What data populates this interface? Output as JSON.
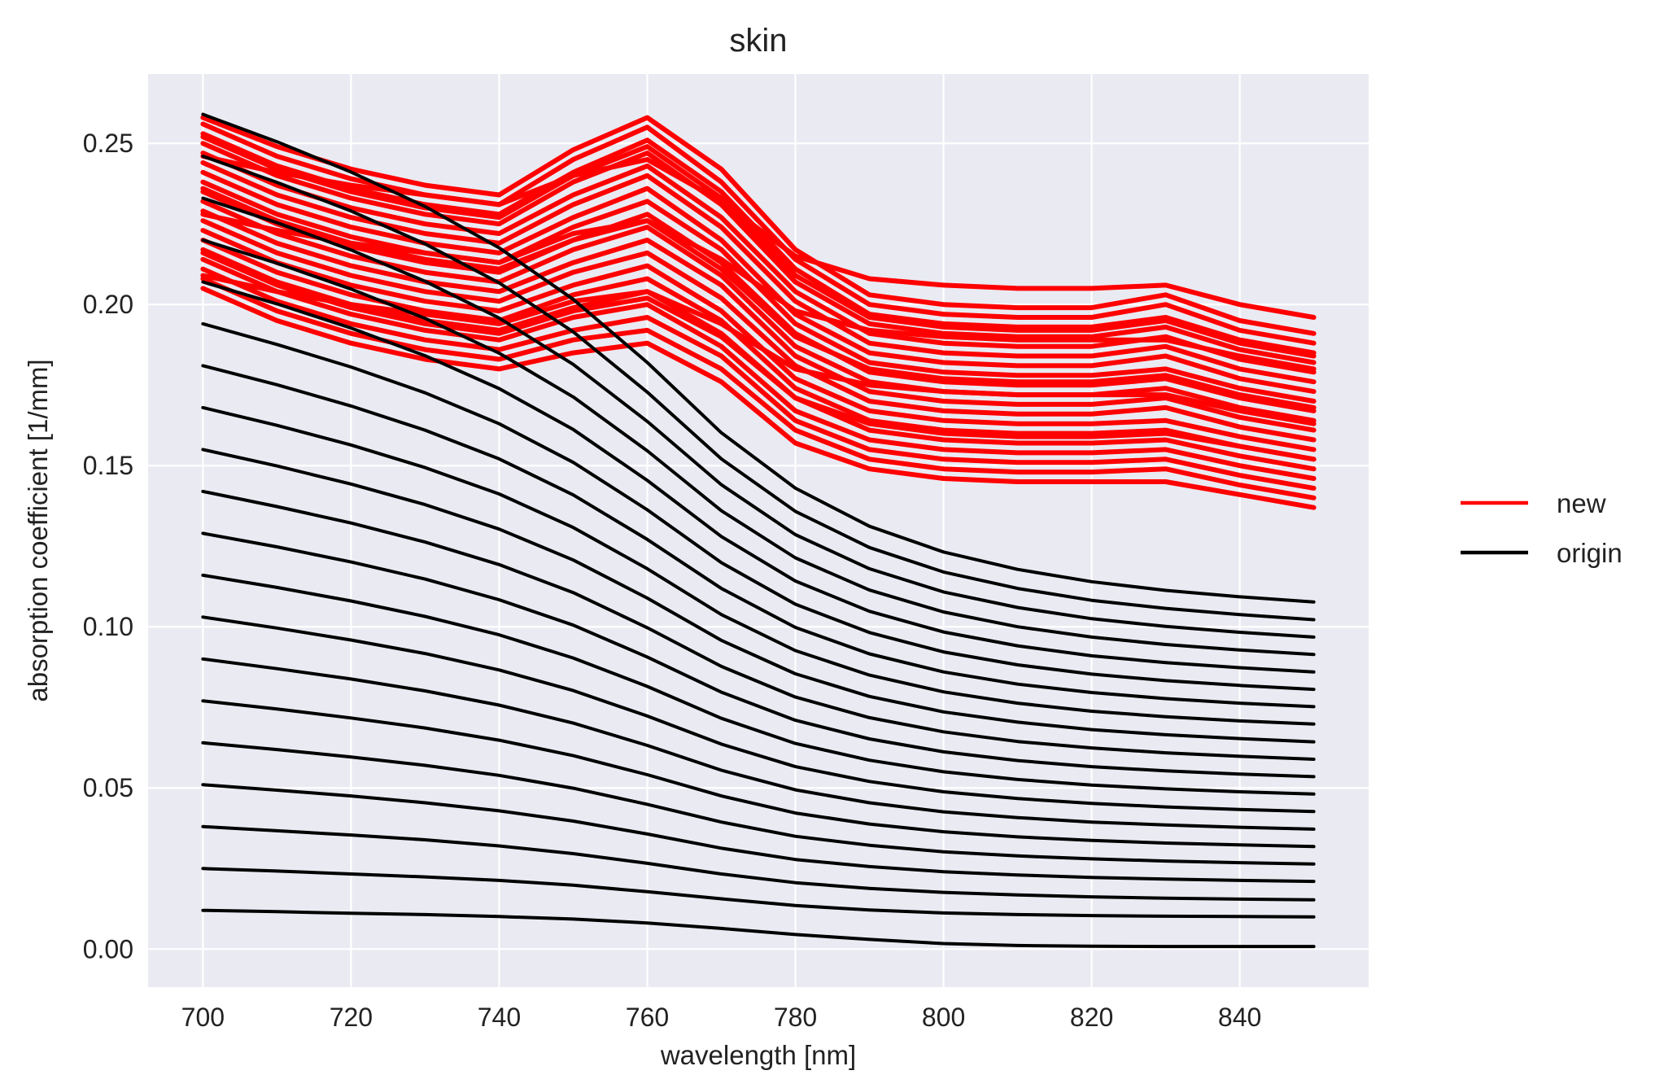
{
  "chart_data": {
    "type": "line",
    "title": "skin",
    "xlabel": "wavelength [nm]",
    "ylabel": "absorption coefficient [1/mm]",
    "xlim": [
      692.6,
      857.4
    ],
    "ylim": [
      -0.0118,
      0.2715
    ],
    "xticks": [
      700,
      720,
      740,
      760,
      780,
      800,
      820,
      840
    ],
    "yticks": [
      0.0,
      0.05,
      0.1,
      0.15,
      0.2,
      0.25
    ],
    "ytick_labels": [
      "0.00",
      "0.05",
      "0.10",
      "0.15",
      "0.20",
      "0.25"
    ],
    "grid": true,
    "legend": {
      "position": "outside-right",
      "entries": [
        {
          "label": "new",
          "color": "#ff0000"
        },
        {
          "label": "origin",
          "color": "#000000"
        }
      ]
    },
    "x": [
      700,
      710,
      720,
      730,
      740,
      750,
      760,
      770,
      780,
      790,
      800,
      810,
      820,
      830,
      840,
      850
    ],
    "origin_series": [
      [
        0.012,
        0.0116,
        0.0111,
        0.0107,
        0.0101,
        0.0093,
        0.0081,
        0.0064,
        0.0045,
        0.003,
        0.0017,
        0.0011,
        0.0009,
        0.0008,
        0.0008,
        0.0008
      ],
      [
        0.025,
        0.0242,
        0.0233,
        0.0224,
        0.0213,
        0.0198,
        0.0178,
        0.0156,
        0.0135,
        0.0121,
        0.0112,
        0.0107,
        0.0104,
        0.0102,
        0.0101,
        0.01
      ],
      [
        0.038,
        0.0367,
        0.0354,
        0.0339,
        0.032,
        0.0296,
        0.0266,
        0.0233,
        0.0206,
        0.0188,
        0.0176,
        0.0168,
        0.0162,
        0.0158,
        0.0155,
        0.0153
      ],
      [
        0.051,
        0.0493,
        0.0475,
        0.0454,
        0.0429,
        0.0397,
        0.0357,
        0.0313,
        0.0278,
        0.0256,
        0.024,
        0.023,
        0.0222,
        0.0217,
        0.0213,
        0.021
      ],
      [
        0.064,
        0.0619,
        0.0596,
        0.057,
        0.0539,
        0.0499,
        0.0449,
        0.0394,
        0.035,
        0.0322,
        0.0302,
        0.0289,
        0.028,
        0.0273,
        0.0268,
        0.0264
      ],
      [
        0.077,
        0.0745,
        0.0717,
        0.0686,
        0.0648,
        0.06,
        0.0541,
        0.0475,
        0.0422,
        0.0388,
        0.0364,
        0.0348,
        0.0337,
        0.0329,
        0.0323,
        0.0318
      ],
      [
        0.09,
        0.087,
        0.0838,
        0.0801,
        0.0757,
        0.0701,
        0.0632,
        0.0555,
        0.0494,
        0.0454,
        0.0426,
        0.0408,
        0.0394,
        0.0385,
        0.0378,
        0.0372
      ],
      [
        0.103,
        0.0996,
        0.0959,
        0.0917,
        0.0866,
        0.0802,
        0.0723,
        0.0636,
        0.0566,
        0.052,
        0.0488,
        0.0467,
        0.0452,
        0.0441,
        0.0433,
        0.0427
      ],
      [
        0.116,
        0.1122,
        0.108,
        0.1032,
        0.0975,
        0.0903,
        0.0815,
        0.0716,
        0.0638,
        0.0586,
        0.055,
        0.0526,
        0.0509,
        0.0497,
        0.0488,
        0.0481
      ],
      [
        0.129,
        0.1248,
        0.1201,
        0.1148,
        0.1084,
        0.1005,
        0.0906,
        0.0797,
        0.071,
        0.0652,
        0.0612,
        0.0585,
        0.0566,
        0.0553,
        0.0543,
        0.0535
      ],
      [
        0.142,
        0.1373,
        0.1322,
        0.1263,
        0.1193,
        0.1106,
        0.0997,
        0.0877,
        0.0782,
        0.0718,
        0.0674,
        0.0644,
        0.0624,
        0.0609,
        0.0598,
        0.0589
      ],
      [
        0.155,
        0.1499,
        0.1443,
        0.1379,
        0.1303,
        0.1207,
        0.1089,
        0.0958,
        0.0854,
        0.0784,
        0.0736,
        0.0704,
        0.0681,
        0.0665,
        0.0653,
        0.0643
      ],
      [
        0.168,
        0.1625,
        0.1564,
        0.1494,
        0.1412,
        0.1308,
        0.118,
        0.1038,
        0.0926,
        0.085,
        0.0798,
        0.0763,
        0.0738,
        0.0721,
        0.0708,
        0.0698
      ],
      [
        0.181,
        0.1751,
        0.1685,
        0.161,
        0.1521,
        0.1409,
        0.1271,
        0.1119,
        0.0998,
        0.0916,
        0.086,
        0.0822,
        0.0796,
        0.0777,
        0.0763,
        0.0752
      ],
      [
        0.194,
        0.1876,
        0.1806,
        0.1726,
        0.163,
        0.151,
        0.1363,
        0.1199,
        0.107,
        0.0982,
        0.0922,
        0.0882,
        0.0853,
        0.0833,
        0.0818,
        0.0806
      ],
      [
        0.207,
        0.2002,
        0.1927,
        0.1841,
        0.1739,
        0.1612,
        0.1454,
        0.128,
        0.1142,
        0.1048,
        0.0984,
        0.0941,
        0.091,
        0.0889,
        0.0873,
        0.086
      ],
      [
        0.22,
        0.2128,
        0.2048,
        0.1957,
        0.1849,
        0.1713,
        0.1546,
        0.136,
        0.1214,
        0.1114,
        0.1046,
        0.1,
        0.0968,
        0.0945,
        0.0928,
        0.0914
      ],
      [
        0.233,
        0.2254,
        0.2169,
        0.2072,
        0.1958,
        0.1814,
        0.1637,
        0.1441,
        0.1286,
        0.118,
        0.1108,
        0.106,
        0.1025,
        0.1001,
        0.0983,
        0.0968
      ],
      [
        0.246,
        0.2379,
        0.229,
        0.2188,
        0.2067,
        0.1915,
        0.1728,
        0.1521,
        0.1358,
        0.1246,
        0.117,
        0.1119,
        0.1082,
        0.1057,
        0.1038,
        0.1022
      ],
      [
        0.259,
        0.2505,
        0.2411,
        0.2304,
        0.2176,
        0.2016,
        0.182,
        0.1602,
        0.143,
        0.1312,
        0.1232,
        0.1178,
        0.114,
        0.1113,
        0.1093,
        0.1077
      ]
    ],
    "new_series": [
      [
        0.205,
        0.195,
        0.188,
        0.183,
        0.18,
        0.185,
        0.188,
        0.176,
        0.157,
        0.149,
        0.146,
        0.145,
        0.145,
        0.145,
        0.141,
        0.137
      ],
      [
        0.208,
        0.198,
        0.191,
        0.186,
        0.183,
        0.189,
        0.192,
        0.18,
        0.161,
        0.152,
        0.149,
        0.148,
        0.148,
        0.149,
        0.144,
        0.14
      ],
      [
        0.211,
        0.201,
        0.194,
        0.189,
        0.186,
        0.192,
        0.196,
        0.184,
        0.164,
        0.155,
        0.152,
        0.151,
        0.151,
        0.152,
        0.147,
        0.143
      ],
      [
        0.214,
        0.204,
        0.197,
        0.192,
        0.189,
        0.196,
        0.2,
        0.187,
        0.167,
        0.158,
        0.155,
        0.154,
        0.154,
        0.155,
        0.15,
        0.146
      ],
      [
        0.217,
        0.207,
        0.2,
        0.195,
        0.192,
        0.199,
        0.204,
        0.191,
        0.171,
        0.161,
        0.158,
        0.157,
        0.157,
        0.158,
        0.153,
        0.149
      ],
      [
        0.22,
        0.21,
        0.203,
        0.198,
        0.195,
        0.203,
        0.208,
        0.195,
        0.174,
        0.164,
        0.161,
        0.16,
        0.16,
        0.161,
        0.156,
        0.152
      ],
      [
        0.223,
        0.213,
        0.206,
        0.201,
        0.198,
        0.206,
        0.212,
        0.198,
        0.177,
        0.167,
        0.164,
        0.163,
        0.163,
        0.164,
        0.159,
        0.155
      ],
      [
        0.226,
        0.216,
        0.209,
        0.204,
        0.201,
        0.21,
        0.216,
        0.202,
        0.181,
        0.17,
        0.167,
        0.166,
        0.166,
        0.168,
        0.162,
        0.158
      ],
      [
        0.229,
        0.219,
        0.212,
        0.207,
        0.204,
        0.213,
        0.22,
        0.206,
        0.184,
        0.173,
        0.17,
        0.169,
        0.169,
        0.171,
        0.165,
        0.161
      ],
      [
        0.232,
        0.222,
        0.215,
        0.21,
        0.207,
        0.217,
        0.224,
        0.209,
        0.187,
        0.176,
        0.173,
        0.172,
        0.172,
        0.174,
        0.168,
        0.164
      ],
      [
        0.235,
        0.225,
        0.218,
        0.213,
        0.21,
        0.22,
        0.228,
        0.213,
        0.191,
        0.179,
        0.176,
        0.175,
        0.175,
        0.177,
        0.171,
        0.167
      ],
      [
        0.238,
        0.228,
        0.221,
        0.216,
        0.213,
        0.224,
        0.232,
        0.217,
        0.194,
        0.182,
        0.179,
        0.178,
        0.178,
        0.18,
        0.174,
        0.17
      ],
      [
        0.241,
        0.231,
        0.224,
        0.219,
        0.216,
        0.227,
        0.236,
        0.22,
        0.197,
        0.185,
        0.182,
        0.181,
        0.181,
        0.184,
        0.177,
        0.173
      ],
      [
        0.244,
        0.234,
        0.227,
        0.222,
        0.219,
        0.231,
        0.24,
        0.224,
        0.201,
        0.188,
        0.185,
        0.184,
        0.184,
        0.187,
        0.18,
        0.176
      ],
      [
        0.247,
        0.237,
        0.23,
        0.225,
        0.222,
        0.234,
        0.243,
        0.227,
        0.204,
        0.191,
        0.188,
        0.187,
        0.187,
        0.19,
        0.183,
        0.179
      ],
      [
        0.25,
        0.24,
        0.233,
        0.228,
        0.225,
        0.238,
        0.247,
        0.231,
        0.207,
        0.194,
        0.191,
        0.19,
        0.19,
        0.193,
        0.186,
        0.182
      ],
      [
        0.253,
        0.243,
        0.236,
        0.231,
        0.228,
        0.241,
        0.251,
        0.235,
        0.211,
        0.197,
        0.194,
        0.193,
        0.193,
        0.196,
        0.189,
        0.185
      ],
      [
        0.256,
        0.246,
        0.239,
        0.234,
        0.231,
        0.245,
        0.255,
        0.238,
        0.214,
        0.2,
        0.197,
        0.196,
        0.196,
        0.2,
        0.192,
        0.188
      ],
      [
        0.258,
        0.249,
        0.242,
        0.237,
        0.234,
        0.248,
        0.258,
        0.242,
        0.217,
        0.203,
        0.2,
        0.199,
        0.199,
        0.203,
        0.195,
        0.191
      ],
      [
        0.209,
        0.204,
        0.2,
        0.197,
        0.194,
        0.201,
        0.204,
        0.194,
        0.18,
        0.175,
        0.173,
        0.172,
        0.172,
        0.172,
        0.167,
        0.163
      ],
      [
        0.228,
        0.223,
        0.219,
        0.216,
        0.213,
        0.222,
        0.226,
        0.214,
        0.198,
        0.192,
        0.19,
        0.189,
        0.189,
        0.189,
        0.184,
        0.18
      ],
      [
        0.246,
        0.241,
        0.237,
        0.234,
        0.231,
        0.24,
        0.245,
        0.232,
        0.215,
        0.208,
        0.206,
        0.205,
        0.205,
        0.206,
        0.2,
        0.196
      ],
      [
        0.216,
        0.206,
        0.199,
        0.194,
        0.191,
        0.198,
        0.202,
        0.19,
        0.171,
        0.163,
        0.16,
        0.159,
        0.159,
        0.16,
        0.156,
        0.152
      ],
      [
        0.236,
        0.226,
        0.219,
        0.214,
        0.211,
        0.22,
        0.226,
        0.211,
        0.19,
        0.18,
        0.177,
        0.176,
        0.176,
        0.178,
        0.172,
        0.168
      ],
      [
        0.252,
        0.242,
        0.235,
        0.23,
        0.227,
        0.24,
        0.249,
        0.233,
        0.209,
        0.196,
        0.193,
        0.192,
        0.192,
        0.195,
        0.188,
        0.184
      ]
    ]
  }
}
